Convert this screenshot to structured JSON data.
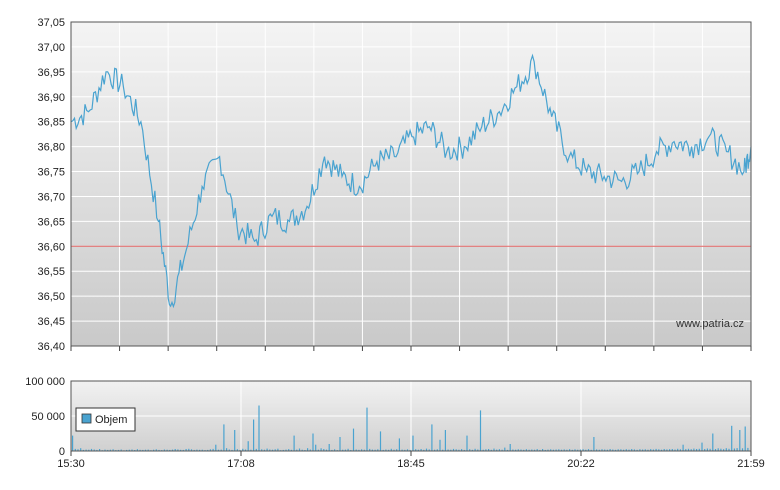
{
  "chart_data": [
    {
      "type": "line",
      "title": "",
      "xlabel": "",
      "ylabel": "",
      "ylim": [
        36.4,
        37.05
      ],
      "yticks": [
        "36,40",
        "36,45",
        "36,50",
        "36,55",
        "36,60",
        "36,65",
        "36,70",
        "36,75",
        "36,80",
        "36,85",
        "36,90",
        "36,95",
        "37,00",
        "37,05"
      ],
      "xticks": [
        "15:30",
        "17:08",
        "18:45",
        "20:22",
        "21:59"
      ],
      "reference_line": {
        "value": 36.6,
        "color": "#e06060"
      },
      "watermark": "www.patria.cz",
      "line_color": "#4aa3d0",
      "series": [
        {
          "x": [
            "15:30",
            "15:40",
            "15:50",
            "16:00",
            "16:10",
            "16:20",
            "16:27",
            "16:35",
            "16:45",
            "16:55",
            "17:05",
            "17:15",
            "17:25",
            "17:35",
            "17:45",
            "17:55",
            "18:05",
            "18:15",
            "18:25",
            "18:35",
            "18:45",
            "18:55",
            "19:05",
            "19:15",
            "19:25",
            "19:35",
            "19:45",
            "19:55",
            "20:05",
            "20:15",
            "20:25",
            "20:35",
            "20:45",
            "20:55",
            "21:05",
            "21:15",
            "21:25",
            "21:35",
            "21:45",
            "21:55",
            "21:59"
          ],
          "values": [
            36.85,
            36.87,
            36.95,
            36.92,
            36.85,
            36.65,
            36.48,
            36.58,
            36.72,
            36.78,
            36.64,
            36.61,
            36.66,
            36.65,
            36.68,
            36.78,
            36.74,
            36.72,
            36.77,
            36.78,
            36.82,
            36.84,
            36.79,
            36.8,
            36.84,
            36.87,
            36.92,
            36.97,
            36.86,
            36.78,
            36.75,
            36.74,
            36.73,
            36.75,
            36.79,
            36.81,
            36.8,
            36.82,
            36.79,
            36.75,
            36.8
          ]
        }
      ]
    },
    {
      "type": "bar",
      "title": "",
      "ylim": [
        0,
        100000
      ],
      "yticks": [
        "0",
        "50 000",
        "100 000"
      ],
      "xticks": [
        "15:30",
        "17:08",
        "18:45",
        "20:22",
        "21:59"
      ],
      "legend": "Objem",
      "legend_position": "top-left",
      "bar_color": "#4aa3d0",
      "series": [
        {
          "name": "Objem",
          "values": [
            22000,
            3000,
            2500,
            4000,
            1500,
            2000,
            1800,
            3000,
            2200,
            1500,
            2800,
            1200,
            2000,
            1500,
            1800,
            2500,
            1300,
            1600,
            2200,
            1000,
            1500,
            1800,
            2100,
            1400,
            2600,
            1700,
            1500,
            1900,
            2000,
            1200,
            1800,
            2400,
            1600,
            1300,
            2200,
            1800,
            1500,
            2000,
            2900,
            2300,
            1700,
            1600,
            2800,
            3200,
            2500,
            1500,
            2000,
            1700,
            1800,
            1300,
            1500,
            2500,
            3000,
            9000,
            1800,
            2000,
            38000,
            4000,
            2200,
            1500,
            30000,
            2600,
            1500,
            3200,
            2100,
            14000,
            1800,
            45000,
            3000,
            65000,
            2500,
            1900,
            3500,
            2100,
            1800,
            2500,
            3300,
            1200,
            1500,
            2000,
            2700,
            1700,
            22000,
            2000,
            3600,
            1800,
            1400,
            4000,
            2200,
            25000,
            9000,
            1800,
            3800,
            2900,
            2000,
            10000,
            1500,
            2400,
            1300,
            20000,
            1800,
            2000,
            3100,
            1400,
            32000,
            2100,
            1700,
            2500,
            1900,
            62000,
            3000,
            2000,
            1800,
            2500,
            28000,
            1600,
            2200,
            1700,
            3200,
            1900,
            2600,
            18000,
            2000,
            1700,
            2400,
            1500,
            22000,
            2600,
            1900,
            2800,
            1700,
            3500,
            2300,
            38000,
            1800,
            2500,
            16000,
            1900,
            30000,
            2200,
            1800,
            3000,
            2400,
            1800,
            2700,
            1500,
            22000,
            2600,
            1700,
            3200,
            2100,
            58000,
            1900,
            2400,
            2800,
            1700,
            3500,
            2000,
            2600,
            1800,
            4800,
            1500,
            10000,
            2200,
            1800,
            2500,
            2100,
            1700,
            2600,
            1900,
            2200,
            1800,
            2700,
            1600,
            2900,
            1600,
            2000,
            2400,
            1800,
            2100,
            2500,
            1900,
            2300,
            1800,
            2600,
            1700,
            2400,
            1800,
            2200,
            2600,
            1900,
            2700,
            1700,
            20000,
            2300,
            1800,
            2600,
            2200,
            1900,
            2800,
            2100,
            1700,
            2500,
            2400,
            1900,
            2600,
            2000,
            2800,
            2300,
            1700,
            2600,
            2100,
            2400,
            1900,
            2700,
            2200,
            3000,
            2500,
            1800,
            2900,
            2300,
            2600,
            2800,
            2100,
            3200,
            2400,
            9000,
            2700,
            3100,
            2600,
            3500,
            2900,
            3200,
            12000,
            2800,
            3600,
            3100,
            25000,
            2900,
            3800,
            3300,
            2600,
            4000,
            3200,
            36000,
            3600,
            4200,
            30000,
            3800,
            35000,
            4500
          ]
        }
      ]
    }
  ]
}
